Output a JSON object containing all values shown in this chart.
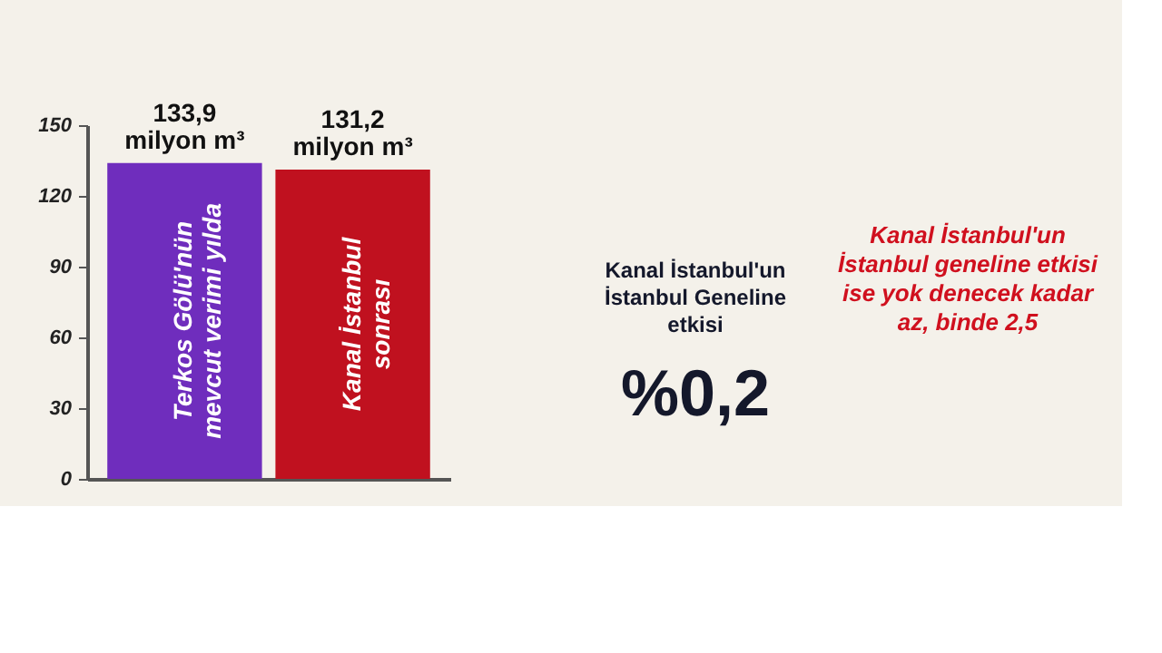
{
  "chart_data": {
    "type": "bar",
    "categories": [
      "Terkos Gölü'nün mevcut verimi yılda",
      "Kanal İstanbul sonrası"
    ],
    "values": [
      133.9,
      131.2
    ],
    "colors": [
      "#6f2dbd",
      "#c0111f"
    ],
    "value_labels": [
      "133,9 milyon m³",
      "131,2 milyon m³"
    ],
    "ylim": [
      0,
      150
    ],
    "yticks": [
      0,
      30,
      60,
      90,
      120,
      150
    ],
    "grid": false,
    "legend": false,
    "tick_labels": "y",
    "annotations": [
      "Kanal İstanbul'un İstanbul Geneline etkisi",
      "%0,2",
      "Kanal İstanbul'un İstanbul geneline etkisi ise yok denecek kadar az, binde 2,5"
    ]
  }
}
